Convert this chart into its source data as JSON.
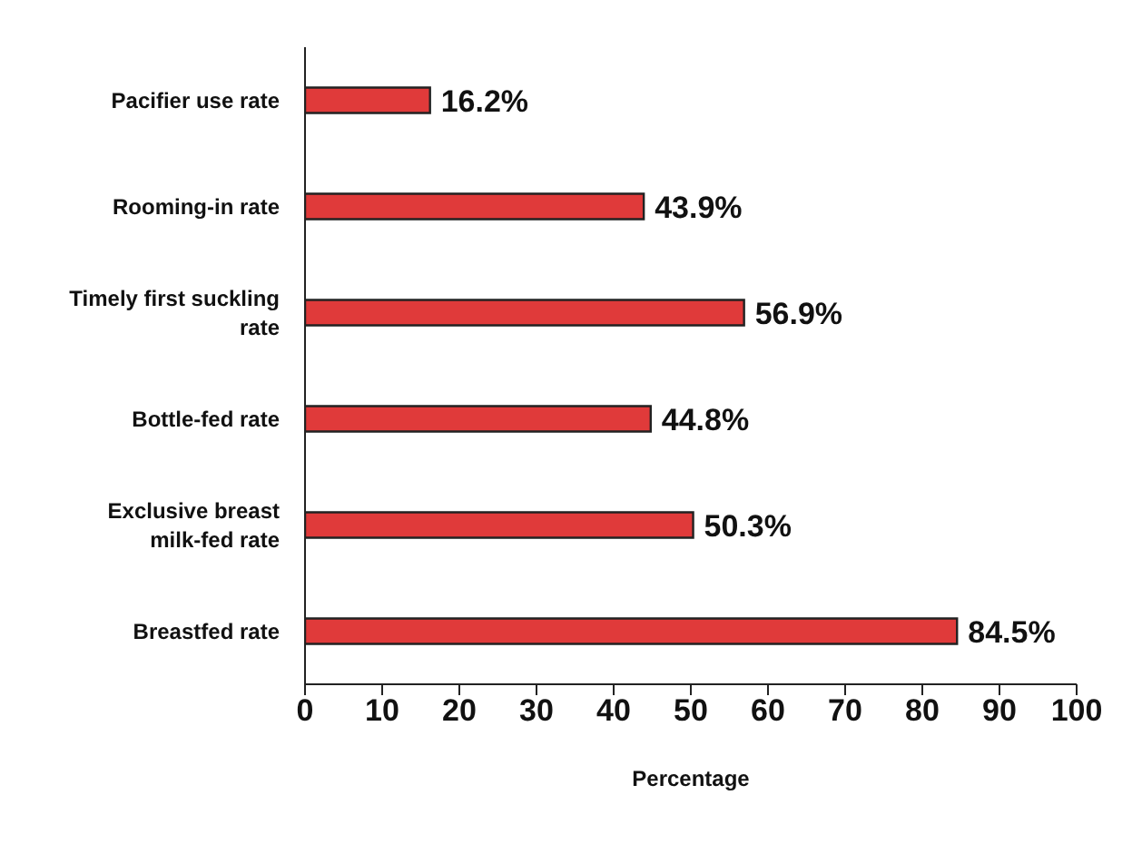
{
  "chart_data": {
    "type": "bar",
    "orientation": "horizontal",
    "xlabel": "Percentage",
    "categories": [
      "Pacifier use rate",
      "Rooming-in rate",
      "Timely first suckling rate",
      "Bottle-fed rate",
      "Exclusive breast milk-fed rate",
      "Breastfed rate"
    ],
    "values": [
      16.2,
      43.9,
      56.9,
      44.8,
      50.3,
      84.5
    ],
    "value_labels": [
      "16.2%",
      "43.9%",
      "56.9%",
      "44.8%",
      "50.3%",
      "84.5%"
    ],
    "color": "#e03a3a",
    "xlim": [
      0,
      100
    ],
    "xticks": [
      0,
      10,
      20,
      30,
      40,
      50,
      60,
      70,
      80,
      90,
      100
    ],
    "grid": false,
    "legend": false
  }
}
